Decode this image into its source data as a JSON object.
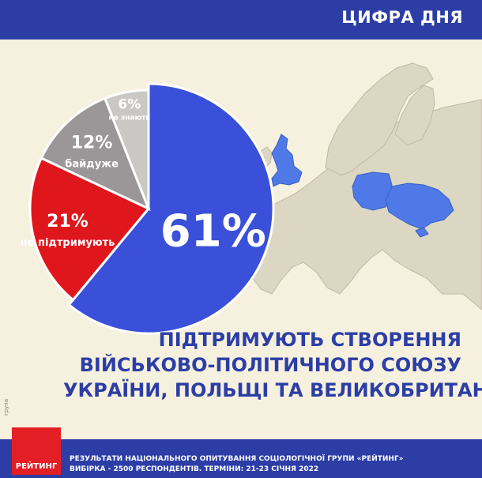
{
  "header": {
    "title": "ЦИФРА ДНЯ"
  },
  "colors": {
    "blue": "#3a50d9",
    "red": "#e0161d",
    "gray": "#9b9697",
    "lightgray": "#c9c8c5",
    "map_land": "#dcd7c3",
    "map_stroke": "#bfb9a4",
    "map_highlight": "#4f79e6"
  },
  "chart_data": {
    "type": "pie",
    "slices": [
      {
        "value": 61,
        "label": "61%",
        "sublabel": ""
      },
      {
        "value": 21,
        "label": "21%",
        "sublabel": "не підтримують"
      },
      {
        "value": 12,
        "label": "12%",
        "sublabel": "байдуже"
      },
      {
        "value": 6,
        "label": "6%",
        "sublabel": "не знають"
      }
    ]
  },
  "headline": {
    "lines": [
      "ПІДТРИМУЮТЬ СТВОРЕННЯ",
      "ВІЙСЬКОВО-ПОЛІТИЧНОГО СОЮЗУ",
      "УКРАЇНИ, ПОЛЬЩІ ТА ВЕЛИКОБРИТАНІЇ"
    ]
  },
  "logo": {
    "text": "РЕЙТИНГ",
    "side_text": "група"
  },
  "footer": {
    "line1": "РЕЗУЛЬТАТИ НАЦІОНАЛЬНОГО ОПИТУВАННЯ СОЦІОЛОГІЧНОЇ ГРУПИ «РЕЙТИНГ»",
    "line2": "ВИБІРКА - 2500 РЕСПОНДЕНТІВ. ТЕРМІНИ: 21-23 СІЧНЯ 2022"
  }
}
